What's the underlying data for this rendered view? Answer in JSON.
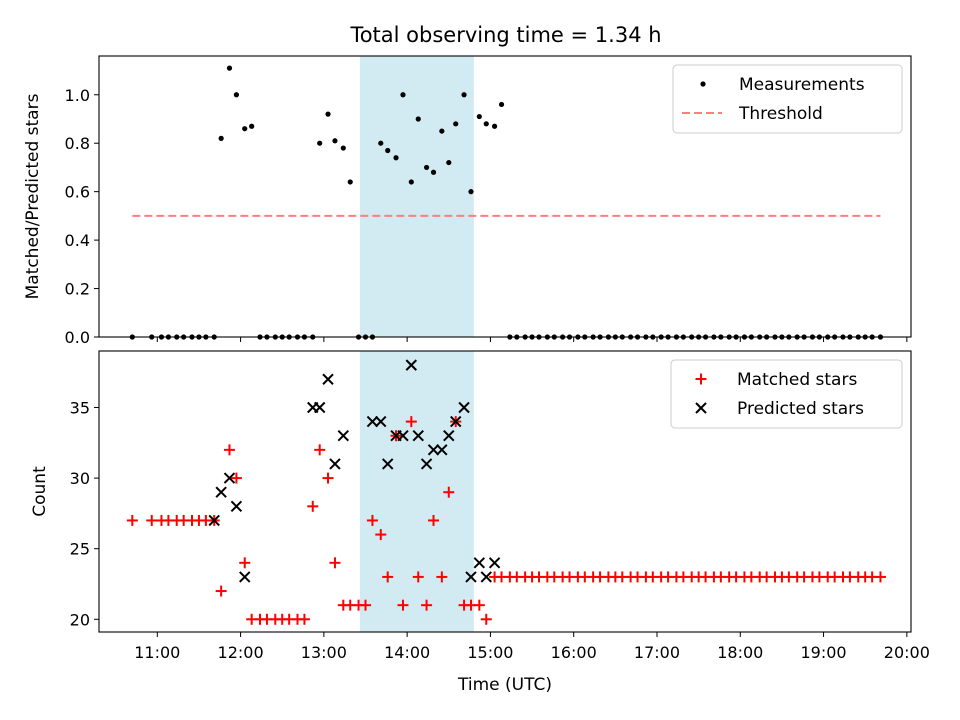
{
  "chart_data": [
    {
      "type": "scatter",
      "title": "Total observing time = 1.34 h",
      "ylabel": "Matched/Predicted stars",
      "xlim": [
        "10:18",
        "20:03"
      ],
      "ylim": [
        0,
        1.16
      ],
      "yticks": [
        "0.0",
        "0.2",
        "0.4",
        "0.6",
        "0.8",
        "1.0"
      ],
      "legend_position": "top-right",
      "highlight_span": {
        "start": "13:26",
        "end": "14:48",
        "color": "#add8e6"
      },
      "threshold": {
        "name": "Threshold",
        "y": 0.5,
        "x_start": "10:42",
        "x_end": "19:41",
        "color": "#ff7f7f"
      },
      "series": [
        {
          "name": "Measurements",
          "color": "#000000",
          "points": [
            [
              "10:42",
              0
            ],
            [
              "10:56",
              0
            ],
            [
              "11:03",
              0
            ],
            [
              "11:08",
              0
            ],
            [
              "11:14",
              0
            ],
            [
              "11:19",
              0
            ],
            [
              "11:25",
              0
            ],
            [
              "11:30",
              0
            ],
            [
              "11:35",
              0
            ],
            [
              "11:41",
              0
            ],
            [
              "11:46",
              0.82
            ],
            [
              "11:52",
              1.11
            ],
            [
              "11:57",
              1.0
            ],
            [
              "12:03",
              0.86
            ],
            [
              "12:08",
              0.87
            ],
            [
              "12:14",
              0
            ],
            [
              "12:19",
              0
            ],
            [
              "12:25",
              0
            ],
            [
              "12:30",
              0
            ],
            [
              "12:35",
              0
            ],
            [
              "12:41",
              0
            ],
            [
              "12:46",
              0
            ],
            [
              "12:52",
              0
            ],
            [
              "12:57",
              0.8
            ],
            [
              "13:03",
              0.92
            ],
            [
              "13:08",
              0.81
            ],
            [
              "13:14",
              0.78
            ],
            [
              "13:19",
              0.64
            ],
            [
              "13:25",
              0
            ],
            [
              "13:30",
              0
            ],
            [
              "13:35",
              0
            ],
            [
              "13:41",
              0.8
            ],
            [
              "13:46",
              0.77
            ],
            [
              "13:52",
              0.74
            ],
            [
              "13:57",
              1.0
            ],
            [
              "14:03",
              0.64
            ],
            [
              "14:08",
              0.9
            ],
            [
              "14:14",
              0.7
            ],
            [
              "14:19",
              0.68
            ],
            [
              "14:25",
              0.85
            ],
            [
              "14:30",
              0.72
            ],
            [
              "14:35",
              0.88
            ],
            [
              "14:41",
              1.0
            ],
            [
              "14:46",
              0.6
            ],
            [
              "14:52",
              0.91
            ],
            [
              "14:57",
              0.88
            ],
            [
              "15:03",
              0.87
            ],
            [
              "15:08",
              0.96
            ],
            [
              "15:14",
              0
            ],
            [
              "15:19",
              0
            ],
            [
              "15:25",
              0
            ],
            [
              "15:30",
              0
            ],
            [
              "15:35",
              0
            ],
            [
              "15:41",
              0
            ],
            [
              "15:46",
              0
            ],
            [
              "15:52",
              0
            ],
            [
              "15:57",
              0
            ],
            [
              "16:03",
              0
            ],
            [
              "16:08",
              0
            ],
            [
              "16:14",
              0
            ],
            [
              "16:19",
              0
            ],
            [
              "16:25",
              0
            ],
            [
              "16:30",
              0
            ],
            [
              "16:35",
              0
            ],
            [
              "16:41",
              0
            ],
            [
              "16:46",
              0
            ],
            [
              "16:52",
              0
            ],
            [
              "16:57",
              0
            ],
            [
              "17:03",
              0
            ],
            [
              "17:08",
              0
            ],
            [
              "17:14",
              0
            ],
            [
              "17:19",
              0
            ],
            [
              "17:25",
              0
            ],
            [
              "17:30",
              0
            ],
            [
              "17:35",
              0
            ],
            [
              "17:41",
              0
            ],
            [
              "17:46",
              0
            ],
            [
              "17:52",
              0
            ],
            [
              "17:57",
              0
            ],
            [
              "18:03",
              0
            ],
            [
              "18:08",
              0
            ],
            [
              "18:14",
              0
            ],
            [
              "18:19",
              0
            ],
            [
              "18:25",
              0
            ],
            [
              "18:30",
              0
            ],
            [
              "18:35",
              0
            ],
            [
              "18:41",
              0
            ],
            [
              "18:46",
              0
            ],
            [
              "18:52",
              0
            ],
            [
              "18:57",
              0
            ],
            [
              "19:03",
              0
            ],
            [
              "19:08",
              0
            ],
            [
              "19:14",
              0
            ],
            [
              "19:19",
              0
            ],
            [
              "19:25",
              0
            ],
            [
              "19:30",
              0
            ],
            [
              "19:35",
              0
            ],
            [
              "19:41",
              0
            ]
          ]
        }
      ]
    },
    {
      "type": "scatter",
      "ylabel": "Count",
      "xlabel": "Time (UTC)",
      "xlim": [
        "10:18",
        "20:03"
      ],
      "ylim": [
        19.1,
        39.0
      ],
      "yticks": [
        "20",
        "25",
        "30",
        "35"
      ],
      "xticks": [
        "11:00",
        "12:00",
        "13:00",
        "14:00",
        "15:00",
        "16:00",
        "17:00",
        "18:00",
        "19:00",
        "20:00"
      ],
      "legend_position": "top-right",
      "highlight_span": {
        "start": "13:26",
        "end": "14:48",
        "color": "#add8e6"
      },
      "series": [
        {
          "name": "Matched stars",
          "marker": "plus",
          "color": "#ff0000",
          "points": [
            [
              "10:42",
              27
            ],
            [
              "10:56",
              27
            ],
            [
              "11:03",
              27
            ],
            [
              "11:08",
              27
            ],
            [
              "11:14",
              27
            ],
            [
              "11:19",
              27
            ],
            [
              "11:25",
              27
            ],
            [
              "11:30",
              27
            ],
            [
              "11:35",
              27
            ],
            [
              "11:41",
              27
            ],
            [
              "11:46",
              22
            ],
            [
              "11:52",
              32
            ],
            [
              "11:57",
              30
            ],
            [
              "12:03",
              24
            ],
            [
              "12:08",
              20
            ],
            [
              "12:14",
              20
            ],
            [
              "12:19",
              20
            ],
            [
              "12:25",
              20
            ],
            [
              "12:30",
              20
            ],
            [
              "12:35",
              20
            ],
            [
              "12:41",
              20
            ],
            [
              "12:46",
              20
            ],
            [
              "12:52",
              28
            ],
            [
              "12:57",
              32
            ],
            [
              "13:03",
              30
            ],
            [
              "13:08",
              24
            ],
            [
              "13:14",
              21
            ],
            [
              "13:19",
              21
            ],
            [
              "13:25",
              21
            ],
            [
              "13:30",
              21
            ],
            [
              "13:35",
              27
            ],
            [
              "13:41",
              26
            ],
            [
              "13:46",
              23
            ],
            [
              "13:52",
              33
            ],
            [
              "13:57",
              21
            ],
            [
              "14:03",
              34
            ],
            [
              "14:08",
              23
            ],
            [
              "14:14",
              21
            ],
            [
              "14:19",
              27
            ],
            [
              "14:25",
              23
            ],
            [
              "14:30",
              29
            ],
            [
              "14:35",
              34
            ],
            [
              "14:41",
              21
            ],
            [
              "14:46",
              21
            ],
            [
              "14:52",
              21
            ],
            [
              "14:57",
              20
            ],
            [
              "15:03",
              23
            ],
            [
              "15:08",
              23
            ],
            [
              "15:14",
              23
            ],
            [
              "15:19",
              23
            ],
            [
              "15:25",
              23
            ],
            [
              "15:30",
              23
            ],
            [
              "15:35",
              23
            ],
            [
              "15:41",
              23
            ],
            [
              "15:46",
              23
            ],
            [
              "15:52",
              23
            ],
            [
              "15:57",
              23
            ],
            [
              "16:03",
              23
            ],
            [
              "16:08",
              23
            ],
            [
              "16:14",
              23
            ],
            [
              "16:19",
              23
            ],
            [
              "16:25",
              23
            ],
            [
              "16:30",
              23
            ],
            [
              "16:35",
              23
            ],
            [
              "16:41",
              23
            ],
            [
              "16:46",
              23
            ],
            [
              "16:52",
              23
            ],
            [
              "16:57",
              23
            ],
            [
              "17:03",
              23
            ],
            [
              "17:08",
              23
            ],
            [
              "17:14",
              23
            ],
            [
              "17:19",
              23
            ],
            [
              "17:25",
              23
            ],
            [
              "17:30",
              23
            ],
            [
              "17:35",
              23
            ],
            [
              "17:41",
              23
            ],
            [
              "17:46",
              23
            ],
            [
              "17:52",
              23
            ],
            [
              "17:57",
              23
            ],
            [
              "18:03",
              23
            ],
            [
              "18:08",
              23
            ],
            [
              "18:14",
              23
            ],
            [
              "18:19",
              23
            ],
            [
              "18:25",
              23
            ],
            [
              "18:30",
              23
            ],
            [
              "18:35",
              23
            ],
            [
              "18:41",
              23
            ],
            [
              "18:46",
              23
            ],
            [
              "18:52",
              23
            ],
            [
              "18:57",
              23
            ],
            [
              "19:03",
              23
            ],
            [
              "19:08",
              23
            ],
            [
              "19:14",
              23
            ],
            [
              "19:19",
              23
            ],
            [
              "19:25",
              23
            ],
            [
              "19:30",
              23
            ],
            [
              "19:35",
              23
            ],
            [
              "19:41",
              23
            ]
          ]
        },
        {
          "name": "Predicted stars",
          "marker": "x",
          "color": "#000000",
          "points": [
            [
              "11:41",
              27
            ],
            [
              "11:46",
              29
            ],
            [
              "11:52",
              30
            ],
            [
              "11:57",
              28
            ],
            [
              "12:03",
              23
            ],
            [
              "12:52",
              35
            ],
            [
              "12:57",
              35
            ],
            [
              "13:03",
              37
            ],
            [
              "13:08",
              31
            ],
            [
              "13:14",
              33
            ],
            [
              "13:35",
              34
            ],
            [
              "13:41",
              34
            ],
            [
              "13:46",
              31
            ],
            [
              "13:52",
              33
            ],
            [
              "13:57",
              33
            ],
            [
              "14:03",
              38
            ],
            [
              "14:08",
              33
            ],
            [
              "14:14",
              31
            ],
            [
              "14:19",
              32
            ],
            [
              "14:25",
              32
            ],
            [
              "14:30",
              33
            ],
            [
              "14:35",
              34
            ],
            [
              "14:41",
              35
            ],
            [
              "14:46",
              23
            ],
            [
              "14:52",
              24
            ],
            [
              "14:57",
              23
            ],
            [
              "15:03",
              24
            ]
          ]
        }
      ]
    }
  ]
}
